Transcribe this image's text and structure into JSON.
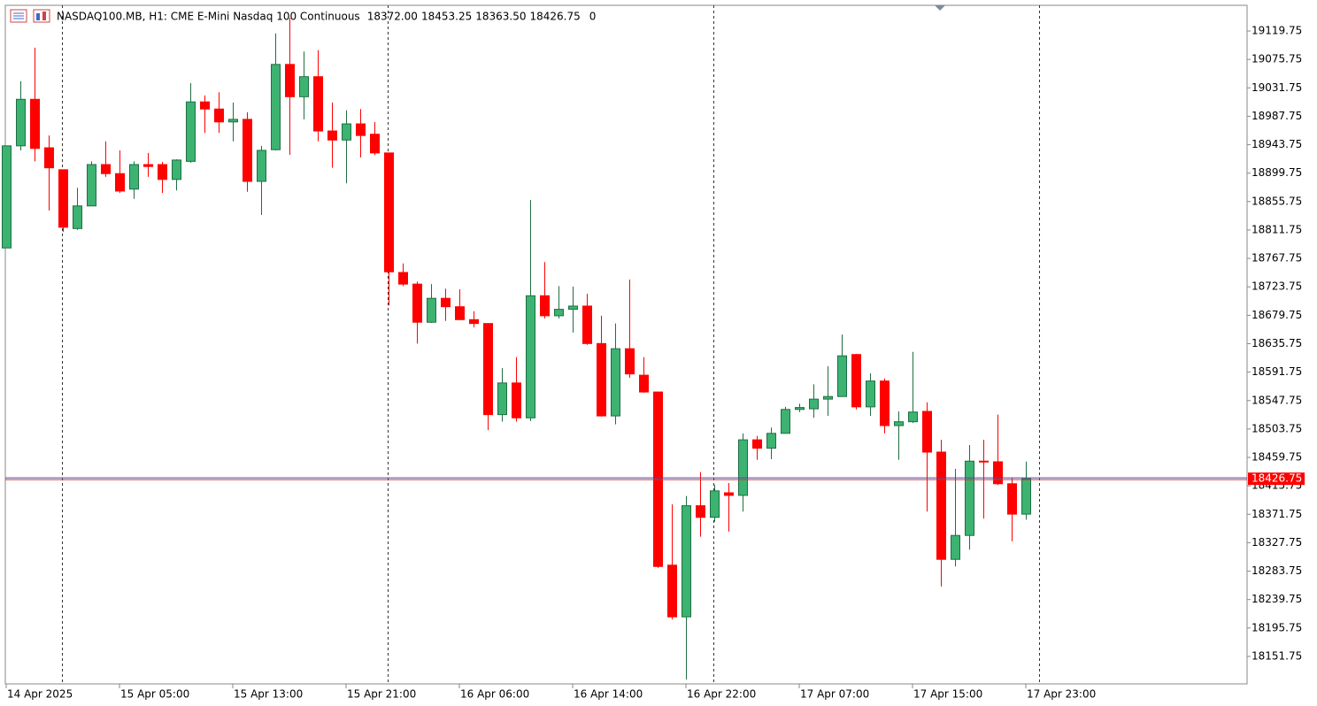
{
  "chart_data": {
    "type": "candlestick",
    "title": "NASDAQ100.MB, H1:  CME E-Mini Nasdaq 100 Continuous",
    "info_labels": [
      "18372.00",
      "18453.25",
      "18363.50",
      "18426.75",
      "0"
    ],
    "up_color": "#3cb371",
    "down_color": "#ff0000",
    "categories": [
      "14 Apr 2025",
      null,
      null,
      null,
      null,
      null,
      null,
      null,
      "15 Apr 05:00",
      null,
      null,
      null,
      null,
      null,
      null,
      null,
      "15 Apr 13:00",
      null,
      null,
      null,
      null,
      null,
      null,
      null,
      "15 Apr 21:00",
      null,
      null,
      null,
      null,
      null,
      null,
      null,
      "16 Apr 06:00",
      null,
      null,
      null,
      null,
      null,
      null,
      null,
      "16 Apr 14:00",
      null,
      null,
      null,
      null,
      null,
      null,
      null,
      "16 Apr 22:00",
      null,
      null,
      null,
      null,
      null,
      null,
      null,
      "17 Apr 07:00",
      null,
      null,
      null,
      null,
      null,
      null,
      null,
      "17 Apr 15:00",
      null,
      null,
      null,
      null,
      null,
      null,
      null,
      "17 Apr 23:00"
    ],
    "open": [
      18784,
      18942,
      19014,
      18939,
      18905,
      18814,
      18849,
      18913,
      18899,
      18875,
      18913,
      18913,
      18890,
      18918,
      19010,
      18999,
      18979,
      18983,
      18887,
      18936,
      19068,
      19018,
      19049,
      18965,
      18951,
      18976,
      18960,
      18931,
      18746,
      18728,
      18669,
      18706,
      18693,
      18673,
      18667,
      18526,
      18575,
      18521,
      18710,
      18679,
      18689,
      18694,
      18636,
      18524,
      18628,
      18587,
      18561,
      18293,
      18213,
      18385,
      18367,
      18405,
      18401,
      18487,
      18474,
      18497,
      18534,
      18535,
      18550,
      18554,
      18619,
      18538,
      18578,
      18509,
      18515,
      18531,
      18468,
      18302,
      18339,
      18454,
      18453,
      18419,
      18372
    ],
    "high": [
      18942,
      19042,
      19094,
      18958,
      18905,
      18877,
      18918,
      18949,
      18935,
      18918,
      18931,
      18917,
      18921,
      19039,
      19020,
      19025,
      19009,
      18994,
      18942,
      19116,
      19140,
      19088,
      19090,
      19009,
      18997,
      18999,
      18979,
      18931,
      18760,
      18732,
      18728,
      18721,
      18720,
      18686,
      18667,
      18598,
      18615,
      18858,
      18762,
      18725,
      18724,
      18713,
      18679,
      18667,
      18735,
      18615,
      18561,
      18387,
      18400,
      18437,
      18417,
      18420,
      18497,
      18493,
      18506,
      18538,
      18543,
      18573,
      18601,
      18650,
      18620,
      18590,
      18582,
      18531,
      18623,
      18545,
      18487,
      18442,
      18479,
      18487,
      18526,
      18428,
      18453.25
    ],
    "low": [
      18784,
      18935,
      18918,
      18842,
      18809,
      18812,
      18849,
      18894,
      18869,
      18860,
      18894,
      18869,
      18873,
      18916,
      18962,
      18962,
      18949,
      18871,
      18835,
      18935,
      18928,
      18983,
      18949,
      18908,
      18884,
      18924,
      18928,
      18695,
      18725,
      18636,
      18668,
      18671,
      18672,
      18661,
      18502,
      18515,
      18515,
      18516,
      18675,
      18675,
      18653,
      18634,
      18523,
      18511,
      18583,
      18560,
      18289,
      18209,
      18116,
      18337,
      18360,
      18345,
      18376,
      18456,
      18457,
      18497,
      18530,
      18521,
      18524,
      18554,
      18534,
      18524,
      18497,
      18456,
      18513,
      18376,
      18260,
      18291,
      18317,
      18365,
      18417,
      18330,
      18363.5
    ],
    "close": [
      18942,
      19014,
      18938,
      18908,
      18816,
      18849,
      18913,
      18899,
      18872,
      18913,
      18910,
      18890,
      18920,
      19010,
      18999,
      18979,
      18983,
      18887,
      18935,
      19068,
      19018,
      19049,
      18965,
      18951,
      18976,
      18958,
      18931,
      18747,
      18728,
      18669,
      18706,
      18693,
      18673,
      18667,
      18526,
      18575,
      18521,
      18710,
      18679,
      18689,
      18694,
      18636,
      18524,
      18628,
      18589,
      18561,
      18291,
      18213,
      18385,
      18367,
      18408,
      18401,
      18487,
      18474,
      18497,
      18534,
      18537,
      18550,
      18554,
      18617,
      18538,
      18578,
      18509,
      18515,
      18530,
      18468,
      18302,
      18339,
      18454,
      18453,
      18419,
      18372,
      18426.75
    ],
    "ylim": [
      18109.25,
      19159.5
    ],
    "yticks": [
      18151.75,
      18195.75,
      18239.75,
      18283.75,
      18327.75,
      18371.75,
      18415.75,
      18459.75,
      18503.75,
      18547.75,
      18591.75,
      18635.75,
      18679.75,
      18723.75,
      18767.75,
      18811.75,
      18855.75,
      18899.75,
      18943.75,
      18987.75,
      19031.75,
      19075.75,
      19119.75
    ],
    "grid": false
  }
}
